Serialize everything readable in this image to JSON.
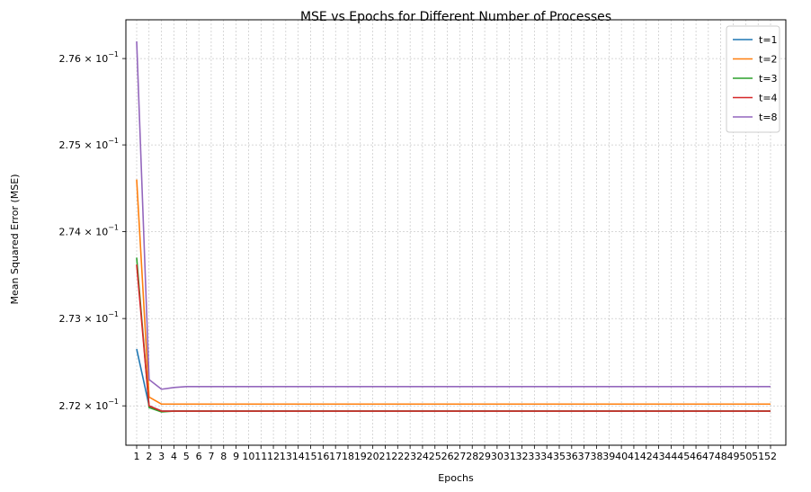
{
  "chart_data": {
    "type": "line",
    "title": "MSE vs Epochs for Different Number of Processes",
    "xlabel": "Epochs",
    "ylabel": "Mean Squared Error (MSE)",
    "yscale": "log",
    "grid": true,
    "legend_position": "top-right",
    "x": [
      1,
      2,
      3,
      4,
      5,
      6,
      7,
      8,
      9,
      10,
      11,
      12,
      13,
      14,
      15,
      16,
      17,
      18,
      19,
      20,
      21,
      22,
      23,
      24,
      25,
      26,
      27,
      28,
      29,
      30,
      31,
      32,
      33,
      34,
      35,
      36,
      37,
      38,
      39,
      40,
      41,
      42,
      43,
      44,
      45,
      46,
      47,
      48,
      49,
      50,
      51,
      52
    ],
    "xticks": [
      "1",
      "2",
      "3",
      "4",
      "5",
      "6",
      "7",
      "8",
      "9",
      "10",
      "11",
      "12",
      "13",
      "14",
      "15",
      "16",
      "17",
      "18",
      "19",
      "20",
      "21",
      "22",
      "23",
      "24",
      "25",
      "26",
      "27",
      "28",
      "29",
      "30",
      "31",
      "32",
      "33",
      "34",
      "35",
      "36",
      "37",
      "38",
      "39",
      "40",
      "41",
      "42",
      "43",
      "44",
      "45",
      "46",
      "47",
      "48",
      "49",
      "50",
      "51",
      "52"
    ],
    "ylim": [
      0.27155,
      0.27645
    ],
    "yticks": [
      {
        "value": 0.272,
        "mantissa": "2.72",
        "exp": "−1"
      },
      {
        "value": 0.273,
        "mantissa": "2.73",
        "exp": "−1"
      },
      {
        "value": 0.274,
        "mantissa": "2.74",
        "exp": "−1"
      },
      {
        "value": 0.275,
        "mantissa": "2.75",
        "exp": "−1"
      },
      {
        "value": 0.276,
        "mantissa": "2.76",
        "exp": "−1"
      }
    ],
    "series": [
      {
        "name": "t=1",
        "color": "#1f77b4",
        "start": [
          0.27265,
          0.272
        ],
        "plateau": 0.27194
      },
      {
        "name": "t=2",
        "color": "#ff7f0e",
        "start": [
          0.2746,
          0.2721,
          0.27202
        ],
        "plateau": 0.27202
      },
      {
        "name": "t=3",
        "color": "#2ca02c",
        "start": [
          0.2737,
          0.27198,
          0.27193
        ],
        "plateau": 0.27194
      },
      {
        "name": "t=4",
        "color": "#d62728",
        "start": [
          0.27362,
          0.272,
          0.27194
        ],
        "plateau": 0.27194
      },
      {
        "name": "t=8",
        "color": "#9467bd",
        "start": [
          0.2762,
          0.2723,
          0.27219,
          0.27221
        ],
        "plateau": 0.27222
      }
    ]
  }
}
